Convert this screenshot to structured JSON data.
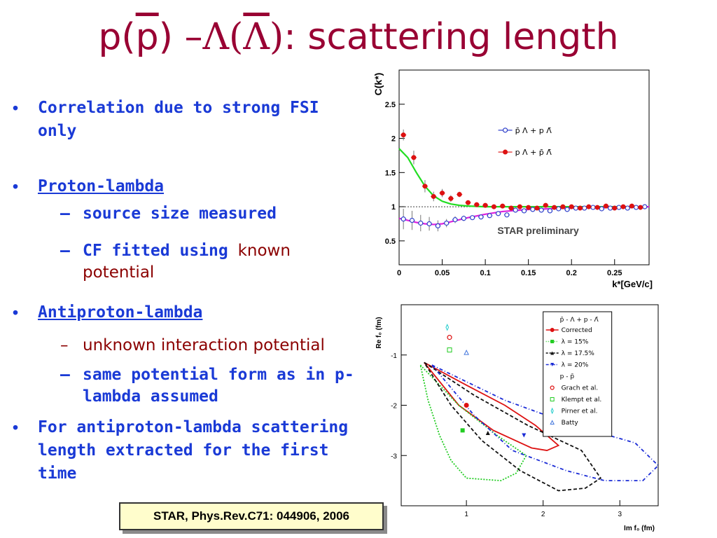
{
  "title": {
    "p1": "p(",
    "p2": "p",
    "p3": ") –",
    "l1": "Λ(",
    "l2": "Λ",
    "l3": ")",
    "rest": ": scattering length"
  },
  "bullets": {
    "b1": "Correlation due to strong FSI only",
    "b2": "Proton-lambda",
    "b2_sub1": "source size measured",
    "b2_sub2a": "CF fitted using",
    "b2_sub2b": "known potential",
    "b3": "Antiproton-lambda",
    "b3_sub1": "unknown interaction potential",
    "b3_sub2": "same potential form as in p-lambda assumed",
    "b4": "For antiproton-lambda scattering length extracted for the first time",
    "bullet_char": "•",
    "dash_char": "–"
  },
  "reference": "STAR,  Phys.Rev.C71: 044906, 2006",
  "colors": {
    "title": "#990033",
    "blue_text": "#1a3ad6",
    "dark_red_text": "#8b0000",
    "ref_bg": "#fffdcc"
  },
  "chart_data": [
    {
      "type": "scatter",
      "ylabel": "C(k*)",
      "xlabel": "k*[GeV/c]",
      "annotation": "STAR preliminary",
      "xlim": [
        0,
        0.29
      ],
      "ylim": [
        0.15,
        3.0
      ],
      "xticks": [
        0,
        0.05,
        0.1,
        0.15,
        0.2,
        0.25
      ],
      "xtick_labels": [
        "0",
        "0.05",
        "0.1",
        "0.15",
        "0.2",
        "0.25"
      ],
      "yticks": [
        0.5,
        1,
        1.5,
        2,
        2.5
      ],
      "ytick_labels": [
        "0.5",
        "1",
        "1.5",
        "2",
        "2.5"
      ],
      "series": [
        {
          "name": "p̄ Λ + p Λ̄",
          "marker": "open-circle",
          "color": "#3344cc",
          "x": [
            0.005,
            0.015,
            0.025,
            0.035,
            0.045,
            0.055,
            0.065,
            0.075,
            0.085,
            0.095,
            0.105,
            0.115,
            0.125,
            0.135,
            0.145,
            0.155,
            0.165,
            0.175,
            0.185,
            0.195,
            0.205,
            0.215,
            0.225,
            0.235,
            0.245,
            0.255,
            0.265,
            0.275,
            0.285
          ],
          "y": [
            0.82,
            0.8,
            0.76,
            0.75,
            0.72,
            0.76,
            0.81,
            0.83,
            0.84,
            0.85,
            0.87,
            0.9,
            0.88,
            0.95,
            0.94,
            0.96,
            0.95,
            0.94,
            0.97,
            0.96,
            0.98,
            0.98,
            0.99,
            0.97,
            0.98,
            0.99,
            0.98,
            0.99,
            1.0
          ],
          "err": [
            0.15,
            0.14,
            0.12,
            0.1,
            0.08,
            0.06,
            0.05,
            0.04,
            0.03,
            0.03,
            0.03,
            0.02,
            0.02,
            0.02,
            0.02,
            0.02,
            0.02,
            0.02,
            0.02,
            0.02,
            0.02,
            0.02,
            0.02,
            0.02,
            0.02,
            0.02,
            0.02,
            0.02,
            0.02
          ]
        },
        {
          "name": "p Λ + p̄ Λ̄",
          "marker": "filled-circle",
          "color": "#dd1111",
          "x": [
            0.005,
            0.017,
            0.03,
            0.04,
            0.05,
            0.06,
            0.07,
            0.08,
            0.09,
            0.1,
            0.11,
            0.12,
            0.13,
            0.14,
            0.15,
            0.16,
            0.17,
            0.18,
            0.19,
            0.2,
            0.21,
            0.22,
            0.23,
            0.24,
            0.25,
            0.26,
            0.27,
            0.28
          ],
          "y": [
            2.05,
            1.72,
            1.3,
            1.15,
            1.2,
            1.12,
            1.18,
            1.06,
            1.03,
            1.02,
            1.0,
            1.01,
            0.98,
            1.0,
            0.99,
            0.98,
            1.02,
            0.99,
            1.0,
            1.0,
            0.98,
            1.0,
            0.99,
            1.01,
            0.98,
            1.0,
            1.01,
            0.99
          ],
          "err": [
            0.08,
            0.1,
            0.09,
            0.07,
            0.06,
            0.05,
            0.04,
            0.03,
            0.03,
            0.03,
            0.02,
            0.02,
            0.02,
            0.02,
            0.02,
            0.02,
            0.02,
            0.02,
            0.02,
            0.02,
            0.02,
            0.02,
            0.02,
            0.02,
            0.02,
            0.02,
            0.02,
            0.02
          ]
        }
      ],
      "fit_curves": [
        {
          "color": "#22dd22",
          "x": [
            0,
            0.01,
            0.02,
            0.03,
            0.04,
            0.05,
            0.06,
            0.07,
            0.08,
            0.1,
            0.12,
            0.15,
            0.2,
            0.25,
            0.29
          ],
          "y": [
            1.85,
            1.72,
            1.5,
            1.3,
            1.16,
            1.08,
            1.04,
            1.02,
            1.01,
            1.0,
            1.0,
            1.0,
            1.0,
            1.0,
            1.0
          ]
        },
        {
          "color": "#dd22dd",
          "x": [
            0,
            0.01,
            0.02,
            0.03,
            0.04,
            0.05,
            0.06,
            0.08,
            0.1,
            0.12,
            0.15,
            0.2,
            0.25,
            0.29
          ],
          "y": [
            0.83,
            0.8,
            0.77,
            0.75,
            0.74,
            0.75,
            0.78,
            0.84,
            0.89,
            0.93,
            0.96,
            0.98,
            0.99,
            1.0
          ]
        }
      ]
    },
    {
      "type": "scatter",
      "ylabel": "Re f₀  (fm)",
      "xlabel": "Im f₀  (fm)",
      "xlim": [
        0.15,
        3.5
      ],
      "ylim": [
        -4.0,
        0.0
      ],
      "xticks": [
        1,
        2,
        3
      ],
      "xtick_labels": [
        "1",
        "2",
        "3"
      ],
      "yticks": [
        -1,
        -2,
        -3
      ],
      "ytick_labels": [
        "-1",
        "-2",
        "-3"
      ],
      "legend": {
        "position": "top-right",
        "header1": "p̄ - Λ + p - Λ̄",
        "header2": "p - p̄",
        "entries": [
          {
            "label": "Corrected",
            "color": "#dd1111",
            "style": "solid",
            "marker": "filled-circle"
          },
          {
            "label": "λ = 15%",
            "color": "#22cc22",
            "style": "dotted",
            "marker": "filled-square"
          },
          {
            "label": "λ = 17.5%",
            "color": "#111111",
            "style": "dashed",
            "marker": "filled-triangle-up"
          },
          {
            "label": "λ = 20%",
            "color": "#1a2bd6",
            "style": "dashdot",
            "marker": "filled-triangle-down"
          },
          {
            "label": "Grach et al.",
            "color": "#dd1111",
            "marker": "open-circle"
          },
          {
            "label": "Klempt et al.",
            "color": "#22cc22",
            "marker": "open-square"
          },
          {
            "label": "Pirner et al.",
            "color": "#22cccc",
            "marker": "open-diamond"
          },
          {
            "label": "Batty",
            "color": "#4477dd",
            "marker": "open-triangle"
          }
        ]
      },
      "points": [
        {
          "x": 1.0,
          "y": -2.0,
          "color": "#dd1111",
          "marker": "filled-circle"
        },
        {
          "x": 0.95,
          "y": -2.5,
          "color": "#22cc22",
          "marker": "filled-square"
        },
        {
          "x": 1.28,
          "y": -2.55,
          "color": "#111111",
          "marker": "filled-triangle-up"
        },
        {
          "x": 1.75,
          "y": -2.6,
          "color": "#1a2bd6",
          "marker": "filled-triangle-down"
        },
        {
          "x": 0.78,
          "y": -0.65,
          "color": "#dd1111",
          "marker": "open-circle"
        },
        {
          "x": 0.78,
          "y": -0.9,
          "color": "#22cc22",
          "marker": "open-square"
        },
        {
          "x": 0.75,
          "y": -0.45,
          "color": "#22cccc",
          "marker": "open-diamond"
        },
        {
          "x": 1.0,
          "y": -0.95,
          "color": "#4477dd",
          "marker": "open-triangle"
        }
      ],
      "contours": [
        {
          "color": "#dd1111",
          "dash": "",
          "x": [
            0.45,
            1.0,
            1.5,
            1.9,
            2.2,
            2.05,
            1.85,
            1.35,
            0.9,
            0.45
          ],
          "y": [
            -1.15,
            -1.6,
            -2.0,
            -2.4,
            -2.8,
            -2.9,
            -2.85,
            -2.5,
            -2.0,
            -1.15
          ]
        },
        {
          "color": "#22cc22",
          "dash": "2,2",
          "x": [
            0.4,
            0.9,
            1.4,
            1.78,
            1.65,
            1.45,
            1.0,
            0.8,
            0.65,
            0.5,
            0.4
          ],
          "y": [
            -1.2,
            -2.0,
            -2.6,
            -3.0,
            -3.35,
            -3.5,
            -3.45,
            -3.1,
            -2.6,
            -1.9,
            -1.2
          ]
        },
        {
          "color": "#111111",
          "dash": "5,3",
          "x": [
            0.45,
            1.1,
            1.8,
            2.5,
            2.75,
            2.55,
            2.2,
            1.7,
            1.2,
            0.8,
            0.45
          ],
          "y": [
            -1.15,
            -1.8,
            -2.4,
            -2.9,
            -3.45,
            -3.65,
            -3.7,
            -3.3,
            -2.7,
            -2.0,
            -1.15
          ]
        },
        {
          "color": "#1a2bd6",
          "dash": "5,3,1,3",
          "x": [
            0.55,
            1.5,
            2.4,
            3.2,
            3.5,
            3.3,
            2.8,
            2.3,
            1.6,
            1.1,
            0.55
          ],
          "y": [
            -1.2,
            -1.9,
            -2.4,
            -2.75,
            -3.2,
            -3.5,
            -3.5,
            -3.3,
            -2.9,
            -2.2,
            -1.2
          ]
        }
      ]
    }
  ]
}
